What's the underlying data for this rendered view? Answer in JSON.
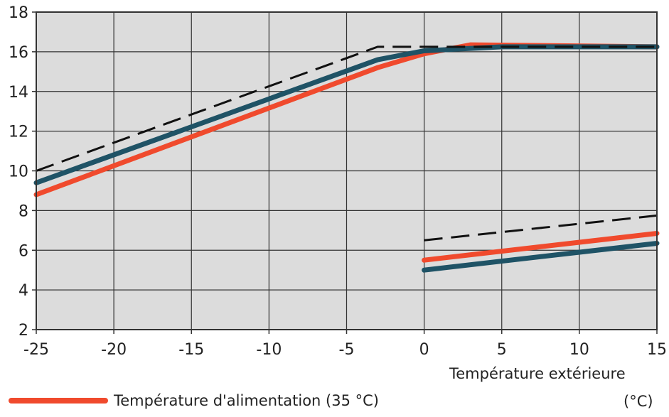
{
  "chart_data": {
    "type": "line",
    "xlabel": "Température extérieure",
    "xlabel_unit": "(°C)",
    "xlim": [
      -25,
      15
    ],
    "ylim": [
      2,
      18
    ],
    "x_ticks": [
      -25,
      -20,
      -15,
      -10,
      -5,
      0,
      5,
      10,
      15
    ],
    "y_ticks": [
      2,
      4,
      6,
      8,
      10,
      12,
      14,
      16,
      18
    ],
    "grid": true,
    "plot_background": "#dcdcdc",
    "series": [
      {
        "name": "Température d'alimentation (35 °C)",
        "color": "#f04a2d",
        "style": "solid",
        "segments": [
          [
            [
              -25,
              8.8
            ],
            [
              -3,
              15.2
            ],
            [
              0,
              15.9
            ],
            [
              3,
              16.35
            ],
            [
              15,
              16.25
            ]
          ],
          [
            [
              0,
              5.5
            ],
            [
              15,
              6.85
            ]
          ]
        ]
      },
      {
        "color": "#1f5366",
        "style": "solid",
        "segments": [
          [
            [
              -25,
              9.4
            ],
            [
              -3,
              15.6
            ],
            [
              0,
              16.05
            ],
            [
              5,
              16.25
            ],
            [
              15,
              16.25
            ]
          ],
          [
            [
              0,
              5.0
            ],
            [
              15,
              6.35
            ]
          ]
        ]
      },
      {
        "color": "#111111",
        "style": "dashed",
        "segments": [
          [
            [
              -25,
              10.0
            ],
            [
              -3,
              16.25
            ],
            [
              15,
              16.25
            ]
          ],
          [
            [
              0,
              6.5
            ],
            [
              15,
              7.75
            ]
          ]
        ]
      }
    ]
  },
  "legend": {
    "entries": [
      {
        "label": "Température d'alimentation (35 °C)",
        "color": "#f04a2d"
      }
    ]
  }
}
